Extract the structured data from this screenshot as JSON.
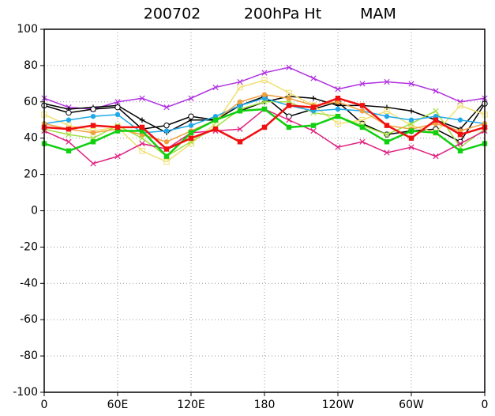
{
  "chart_data": {
    "type": "line",
    "title_parts": [
      "200702",
      "200hPa Ht",
      "MAM"
    ],
    "x": [
      0,
      20,
      40,
      60,
      80,
      100,
      120,
      140,
      160,
      180,
      200,
      220,
      240,
      260,
      280,
      300,
      320,
      340,
      360
    ],
    "xlim": [
      0,
      360
    ],
    "xticks": [
      {
        "value": 0,
        "label": "0"
      },
      {
        "value": 60,
        "label": "60E"
      },
      {
        "value": 120,
        "label": "120E"
      },
      180,
      {
        "value": 240,
        "label": "120W"
      },
      {
        "value": 300,
        "label": "60W"
      },
      {
        "value": 360,
        "label": "0"
      }
    ],
    "ylim": [
      -100,
      100
    ],
    "yticks": [
      -100,
      -80,
      -60,
      -40,
      -20,
      0,
      20,
      40,
      60,
      80,
      100
    ],
    "grid": true,
    "series": [
      {
        "color": "#b030e0",
        "marker": "x",
        "values": [
          62,
          57,
          56,
          60,
          62,
          57,
          62,
          68,
          71,
          76,
          79,
          73,
          67,
          70,
          71,
          70,
          66,
          60,
          62
        ]
      },
      {
        "color": "#000000",
        "marker": "plus",
        "values": [
          59,
          56,
          57,
          58,
          50,
          43,
          50,
          50,
          55,
          60,
          63,
          62,
          58,
          58,
          57,
          55,
          50,
          45,
          60
        ]
      },
      {
        "color": "#000000",
        "marker": "circle",
        "values": [
          58,
          54,
          56,
          57,
          45,
          47,
          52,
          50,
          58,
          63,
          52,
          56,
          60,
          48,
          42,
          44,
          45,
          38,
          59
        ]
      },
      {
        "color": "#f0e070",
        "marker": "square",
        "values": [
          53,
          47,
          44,
          46,
          33,
          27,
          37,
          48,
          68,
          72,
          65,
          58,
          48,
          50,
          55,
          47,
          43,
          58,
          53
        ]
      },
      {
        "color": "#a0e040",
        "marker": "x",
        "values": [
          45,
          42,
          40,
          47,
          40,
          30,
          38,
          46,
          56,
          60,
          60,
          54,
          52,
          47,
          42,
          48,
          55,
          35,
          45
        ]
      },
      {
        "color": "#20a8e8",
        "marker": "dot",
        "values": [
          48,
          50,
          52,
          53,
          43,
          44,
          47,
          52,
          58,
          62,
          58,
          55,
          56,
          55,
          52,
          50,
          52,
          50,
          48
        ]
      },
      {
        "color": "#f0a040",
        "marker": "dot",
        "values": [
          48,
          45,
          43,
          45,
          42,
          38,
          44,
          50,
          60,
          64,
          62,
          58,
          60,
          55,
          47,
          45,
          48,
          44,
          48
        ]
      },
      {
        "color": "#e02080",
        "marker": "x",
        "values": [
          44,
          38,
          26,
          30,
          37,
          34,
          43,
          44,
          45,
          56,
          50,
          44,
          35,
          38,
          32,
          35,
          30,
          37,
          44
        ]
      },
      {
        "color": "#10d010",
        "marker": "fsquare",
        "values": [
          37,
          33,
          38,
          44,
          44,
          30,
          43,
          50,
          55,
          56,
          46,
          47,
          52,
          46,
          38,
          44,
          43,
          33,
          37
        ]
      },
      {
        "color": "#f01010",
        "marker": "fsquare",
        "values": [
          46,
          45,
          47,
          46,
          46,
          34,
          40,
          45,
          38,
          46,
          58,
          57,
          62,
          58,
          47,
          40,
          50,
          42,
          46
        ]
      }
    ]
  }
}
